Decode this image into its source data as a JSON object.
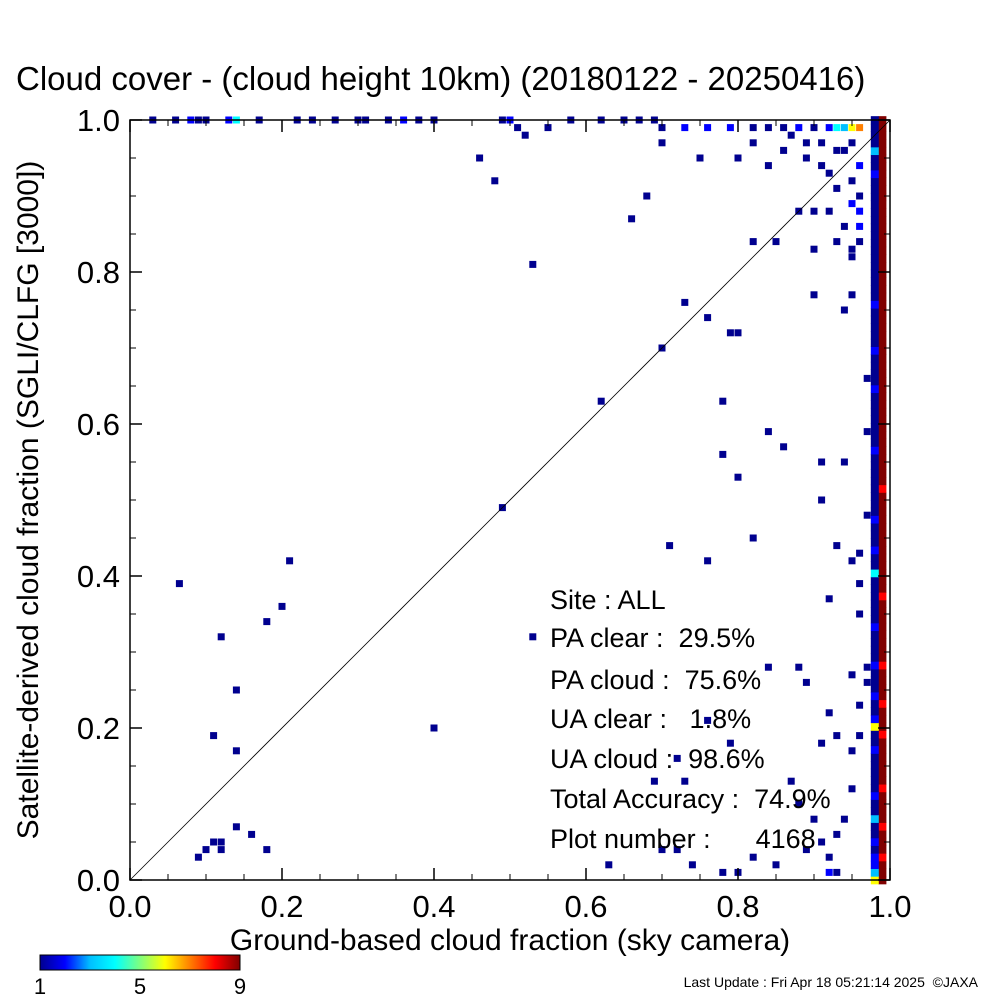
{
  "title": "Cloud cover - (cloud height 10km)  (20180122 - 20250416)",
  "footer": "Last Update : Fri Apr 18 05:21:14 2025  ©JAXA",
  "colorbar": {
    "ticks": [
      "1",
      "5",
      "9"
    ],
    "colors": [
      "#00008f",
      "#0000ff",
      "#00bfff",
      "#00ffff",
      "#7fff7f",
      "#ffff00",
      "#ff7f00",
      "#ff0000",
      "#800000"
    ]
  },
  "stats": {
    "site": "Site : ALL",
    "pa_clear": "PA clear :  29.5%",
    "pa_cloud": "PA cloud :  75.6%",
    "ua_clear": "UA clear :   1.8%",
    "ua_cloud": "UA cloud :  98.6%",
    "total_accuracy": "Total Accuracy :  74.9%",
    "plot_number": "Plot number :      4168"
  },
  "chart_data": {
    "type": "heatmap",
    "xlabel": "Ground-based cloud fraction (sky camera)",
    "ylabel": "Satellite-derived cloud fraction (SGLI/CLFG [3000])",
    "xlim": [
      0.0,
      1.0
    ],
    "ylim": [
      0.0,
      1.0
    ],
    "xticks": [
      "0.0",
      "0.2",
      "0.4",
      "0.6",
      "0.8",
      "1.0"
    ],
    "yticks": [
      "0.0",
      "0.2",
      "0.4",
      "0.6",
      "0.8",
      "1.0"
    ],
    "diagonal_line": true,
    "points": [
      [
        0.065,
        0.39,
        1
      ],
      [
        0.12,
        0.32,
        1
      ],
      [
        0.14,
        0.25,
        1
      ],
      [
        0.11,
        0.19,
        1
      ],
      [
        0.14,
        0.17,
        1
      ],
      [
        0.18,
        0.34,
        1
      ],
      [
        0.2,
        0.36,
        1
      ],
      [
        0.21,
        0.42,
        1
      ],
      [
        0.4,
        0.2,
        1
      ],
      [
        0.49,
        0.49,
        1
      ],
      [
        0.53,
        0.32,
        1
      ],
      [
        0.46,
        0.95,
        1
      ],
      [
        0.48,
        0.92,
        1
      ],
      [
        0.53,
        0.81,
        1
      ],
      [
        0.62,
        0.63,
        1
      ],
      [
        0.66,
        0.87,
        1
      ],
      [
        0.68,
        0.9,
        1
      ],
      [
        0.7,
        0.7,
        1
      ],
      [
        0.73,
        0.76,
        1
      ],
      [
        0.71,
        0.44,
        1
      ],
      [
        0.76,
        0.74,
        1
      ],
      [
        0.76,
        0.42,
        1
      ],
      [
        0.78,
        0.63,
        1
      ],
      [
        0.78,
        0.56,
        1
      ],
      [
        0.79,
        0.72,
        1
      ],
      [
        0.8,
        0.72,
        1
      ],
      [
        0.8,
        0.53,
        1
      ],
      [
        0.82,
        0.45,
        1
      ],
      [
        0.82,
        0.84,
        1
      ],
      [
        0.84,
        0.59,
        1
      ],
      [
        0.85,
        0.84,
        1
      ],
      [
        0.86,
        0.57,
        1
      ],
      [
        0.88,
        0.88,
        1
      ],
      [
        0.9,
        0.77,
        1
      ],
      [
        0.91,
        0.55,
        1
      ],
      [
        0.91,
        0.5,
        1
      ],
      [
        0.92,
        0.37,
        1
      ],
      [
        0.93,
        0.44,
        1
      ],
      [
        0.94,
        0.55,
        1
      ],
      [
        0.95,
        0.42,
        1
      ],
      [
        0.94,
        0.75,
        1
      ],
      [
        0.95,
        0.82,
        1
      ],
      [
        0.96,
        0.43,
        1
      ],
      [
        0.96,
        0.39,
        1
      ],
      [
        0.97,
        0.48,
        1
      ],
      [
        0.96,
        0.35,
        1
      ],
      [
        0.95,
        0.77,
        1
      ],
      [
        0.97,
        0.66,
        1
      ],
      [
        0.97,
        0.59,
        1
      ],
      [
        0.98,
        0.62,
        1
      ],
      [
        0.98,
        0.61,
        1
      ],
      [
        0.92,
        0.22,
        1
      ],
      [
        0.93,
        0.19,
        1
      ],
      [
        0.91,
        0.18,
        1
      ],
      [
        0.95,
        0.17,
        1
      ],
      [
        0.96,
        0.19,
        1
      ],
      [
        0.96,
        0.23,
        1
      ],
      [
        0.97,
        0.26,
        1
      ],
      [
        0.97,
        0.28,
        1
      ],
      [
        0.95,
        0.27,
        1
      ],
      [
        0.84,
        0.28,
        1
      ],
      [
        0.88,
        0.28,
        1
      ],
      [
        0.89,
        0.26,
        1
      ],
      [
        0.87,
        0.13,
        1
      ],
      [
        0.88,
        0.1,
        1
      ],
      [
        0.9,
        0.08,
        1
      ],
      [
        0.91,
        0.05,
        1
      ],
      [
        0.89,
        0.04,
        1
      ],
      [
        0.92,
        0.03,
        1
      ],
      [
        0.93,
        0.06,
        1
      ],
      [
        0.94,
        0.08,
        1
      ],
      [
        0.95,
        0.12,
        1
      ],
      [
        0.92,
        0.01,
        2
      ],
      [
        0.93,
        0.01,
        1
      ],
      [
        0.85,
        0.02,
        1
      ],
      [
        0.82,
        0.03,
        1
      ],
      [
        0.78,
        0.01,
        1
      ],
      [
        0.8,
        0.01,
        1
      ],
      [
        0.74,
        0.02,
        1
      ],
      [
        0.7,
        0.04,
        1
      ],
      [
        0.72,
        0.04,
        1
      ],
      [
        0.69,
        0.13,
        1
      ],
      [
        0.73,
        0.13,
        1
      ],
      [
        0.72,
        0.16,
        1
      ],
      [
        0.76,
        0.21,
        1
      ],
      [
        0.79,
        0.18,
        1
      ],
      [
        0.63,
        0.02,
        1
      ],
      [
        0.09,
        0.03,
        1
      ],
      [
        0.1,
        0.04,
        1
      ],
      [
        0.11,
        0.05,
        1
      ],
      [
        0.12,
        0.05,
        1
      ],
      [
        0.12,
        0.04,
        1
      ],
      [
        0.14,
        0.07,
        1
      ],
      [
        0.16,
        0.06,
        1
      ],
      [
        0.18,
        0.04,
        1
      ],
      [
        0.03,
        1.0,
        1
      ],
      [
        0.06,
        1.0,
        1
      ],
      [
        0.08,
        1.0,
        2
      ],
      [
        0.09,
        1.0,
        1
      ],
      [
        0.1,
        1.0,
        1
      ],
      [
        0.13,
        1.0,
        2
      ],
      [
        0.14,
        1.0,
        4
      ],
      [
        0.17,
        1.0,
        1
      ],
      [
        0.22,
        1.0,
        1
      ],
      [
        0.24,
        1.0,
        1
      ],
      [
        0.27,
        1.0,
        1
      ],
      [
        0.3,
        1.0,
        1
      ],
      [
        0.31,
        1.0,
        1
      ],
      [
        0.34,
        1.0,
        1
      ],
      [
        0.36,
        1.0,
        2
      ],
      [
        0.38,
        1.0,
        1
      ],
      [
        0.4,
        1.0,
        1
      ],
      [
        0.49,
        1.0,
        1
      ],
      [
        0.5,
        1.0,
        2
      ],
      [
        0.51,
        0.99,
        1
      ],
      [
        0.55,
        0.99,
        1
      ],
      [
        0.58,
        1.0,
        1
      ],
      [
        0.62,
        1.0,
        1
      ],
      [
        0.65,
        1.0,
        1
      ],
      [
        0.67,
        1.0,
        1
      ],
      [
        0.69,
        1.0,
        1
      ],
      [
        0.7,
        0.99,
        1
      ],
      [
        0.73,
        0.99,
        2
      ],
      [
        0.76,
        0.99,
        2
      ],
      [
        0.79,
        0.99,
        2
      ],
      [
        0.82,
        0.99,
        1
      ],
      [
        0.84,
        0.99,
        1
      ],
      [
        0.86,
        0.99,
        1
      ],
      [
        0.88,
        0.99,
        2
      ],
      [
        0.9,
        0.99,
        1
      ],
      [
        0.92,
        0.99,
        2
      ],
      [
        0.93,
        0.99,
        4
      ],
      [
        0.94,
        0.99,
        3
      ],
      [
        0.95,
        0.99,
        6
      ],
      [
        0.96,
        0.99,
        7
      ],
      [
        0.52,
        0.98,
        1
      ],
      [
        0.7,
        0.97,
        1
      ],
      [
        0.82,
        0.97,
        1
      ],
      [
        0.87,
        0.98,
        1
      ],
      [
        0.89,
        0.97,
        1
      ],
      [
        0.91,
        0.97,
        1
      ],
      [
        0.93,
        0.96,
        1
      ],
      [
        0.94,
        0.96,
        1
      ],
      [
        0.95,
        0.97,
        1
      ],
      [
        0.75,
        0.95,
        1
      ],
      [
        0.8,
        0.95,
        1
      ],
      [
        0.84,
        0.94,
        1
      ],
      [
        0.86,
        0.96,
        1
      ],
      [
        0.89,
        0.95,
        1
      ],
      [
        0.91,
        0.94,
        1
      ],
      [
        0.92,
        0.93,
        1
      ],
      [
        0.93,
        0.91,
        1
      ],
      [
        0.95,
        0.92,
        1
      ],
      [
        0.96,
        0.94,
        2
      ],
      [
        0.96,
        0.9,
        1
      ],
      [
        0.95,
        0.89,
        2
      ],
      [
        0.96,
        0.88,
        2
      ],
      [
        0.94,
        0.86,
        1
      ],
      [
        0.96,
        0.86,
        2
      ],
      [
        0.92,
        0.88,
        1
      ],
      [
        0.9,
        0.88,
        1
      ],
      [
        0.93,
        0.84,
        1
      ],
      [
        0.96,
        0.84,
        1
      ],
      [
        0.95,
        0.83,
        1
      ],
      [
        0.9,
        0.83,
        1
      ]
    ],
    "right_column": {
      "x": 0.99,
      "counts": [
        9,
        9,
        9,
        8,
        9,
        9,
        9,
        8,
        9,
        9,
        9,
        9,
        8,
        9,
        9,
        9,
        9,
        9,
        9,
        8,
        9,
        9,
        9,
        8,
        9,
        9,
        9,
        9,
        8,
        9,
        9,
        9,
        9,
        9,
        9,
        9,
        9,
        8,
        9,
        9,
        9,
        9,
        9,
        9,
        9,
        9,
        9,
        9,
        9,
        9,
        9,
        8,
        9,
        9,
        9,
        9,
        9,
        9,
        9,
        9,
        9,
        9,
        9,
        9,
        9,
        9,
        9,
        9,
        9,
        9,
        9,
        9,
        9,
        9,
        9,
        9,
        9,
        9,
        9,
        9,
        9,
        9,
        9,
        9,
        9,
        9,
        9,
        9,
        9,
        9,
        9,
        9,
        9,
        9,
        9,
        9,
        9,
        9,
        9,
        9
      ]
    },
    "col98": {
      "x": 0.98,
      "counts": [
        6,
        3,
        2,
        2,
        1,
        2,
        1,
        1,
        3,
        1,
        1,
        2,
        1,
        1,
        1,
        1,
        1,
        2,
        1,
        1,
        6,
        2,
        1,
        1,
        2,
        1,
        1,
        1,
        2,
        1,
        1,
        1,
        1,
        2,
        1,
        1,
        1,
        1,
        1,
        1,
        4,
        1,
        1,
        2,
        1,
        1,
        1,
        2,
        1,
        1,
        1,
        1,
        1,
        1,
        1,
        1,
        2,
        1,
        1,
        1,
        1,
        1,
        1,
        1,
        2,
        1,
        1,
        1,
        1,
        2,
        1,
        1,
        1,
        1,
        1,
        2,
        1,
        1,
        1,
        1,
        1,
        1,
        1,
        1,
        1,
        1,
        1,
        1,
        1,
        1,
        1,
        1,
        2,
        1,
        1,
        3,
        1,
        1,
        1,
        1
      ]
    }
  }
}
